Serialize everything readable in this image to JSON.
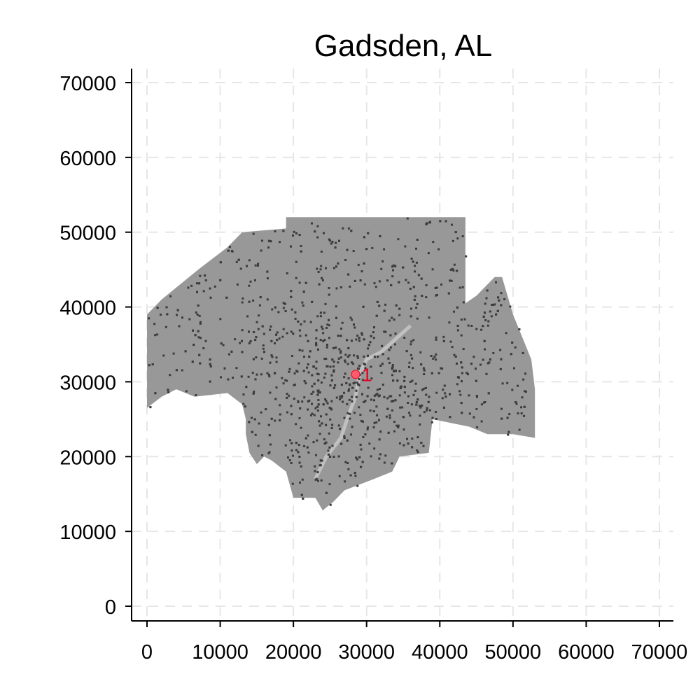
{
  "chart_data": {
    "type": "scatter",
    "title": "Gadsden, AL",
    "xlabel": "",
    "ylabel": "",
    "xlim": [
      0,
      70000
    ],
    "ylim": [
      0,
      70000
    ],
    "x_ticks": [
      0,
      10000,
      20000,
      30000,
      40000,
      50000,
      60000,
      70000
    ],
    "y_ticks": [
      0,
      10000,
      20000,
      30000,
      40000,
      50000,
      60000,
      70000
    ],
    "x_tick_labels": [
      "0",
      "10000",
      "20000",
      "30000",
      "40000",
      "50000",
      "60000",
      "70000"
    ],
    "y_tick_labels": [
      "0",
      "10000",
      "20000",
      "30000",
      "40000",
      "50000",
      "60000",
      "70000"
    ],
    "grid": true,
    "legend": "none",
    "region_outline": [
      [
        0,
        39000
      ],
      [
        2000,
        41000
      ],
      [
        7000,
        45000
      ],
      [
        11000,
        48000
      ],
      [
        13000,
        50000
      ],
      [
        19000,
        50500
      ],
      [
        19000,
        52000
      ],
      [
        43500,
        52000
      ],
      [
        43500,
        40500
      ],
      [
        45000,
        41500
      ],
      [
        47500,
        44000
      ],
      [
        48500,
        44000
      ],
      [
        50000,
        39000
      ],
      [
        52500,
        33000
      ],
      [
        53000,
        29000
      ],
      [
        53000,
        22500
      ],
      [
        50000,
        23000
      ],
      [
        46500,
        23000
      ],
      [
        44000,
        24000
      ],
      [
        39000,
        25000
      ],
      [
        38500,
        20500
      ],
      [
        34500,
        20000
      ],
      [
        33500,
        18000
      ],
      [
        31000,
        17000
      ],
      [
        27000,
        15500
      ],
      [
        25500,
        14000
      ],
      [
        24000,
        12800
      ],
      [
        23000,
        14500
      ],
      [
        20000,
        14500
      ],
      [
        19000,
        18000
      ],
      [
        17000,
        19500
      ],
      [
        16000,
        20000
      ],
      [
        15000,
        19000
      ],
      [
        14000,
        20500
      ],
      [
        13500,
        23000
      ],
      [
        13500,
        25000
      ],
      [
        13000,
        27000
      ],
      [
        11000,
        28500
      ],
      [
        6500,
        28000
      ],
      [
        4000,
        29000
      ],
      [
        2000,
        28000
      ],
      [
        0,
        26500
      ]
    ],
    "region_color": "#989898",
    "dot_color": "#3c3c3c",
    "river_color": "#c0c0c0",
    "river_path": [
      [
        23000,
        17000
      ],
      [
        24500,
        20000
      ],
      [
        26500,
        22500
      ],
      [
        27500,
        25500
      ],
      [
        28500,
        28000
      ],
      [
        29000,
        31000
      ],
      [
        30000,
        33000
      ],
      [
        32000,
        34000
      ],
      [
        36000,
        37500
      ]
    ],
    "center_point": {
      "x": 28500,
      "y": 31000,
      "label": "1",
      "color": "#ff5a6e"
    }
  }
}
